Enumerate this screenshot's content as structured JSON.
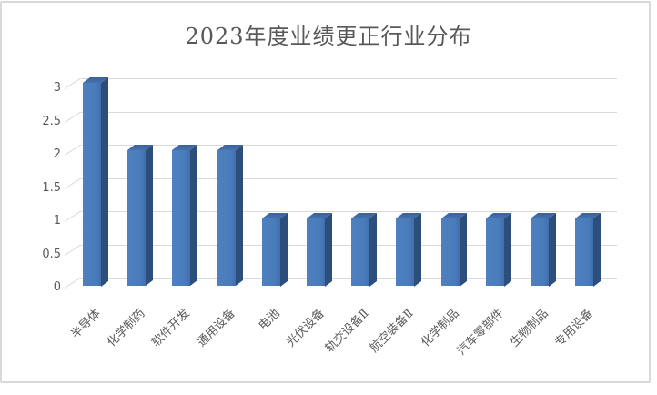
{
  "chart_data": {
    "type": "bar",
    "style": "3d-clustered-column",
    "title": "2023年度业绩更正行业分布",
    "categories": [
      "半导体",
      "化学制药",
      "软件开发",
      "通用设备",
      "电池",
      "光伏设备",
      "轨交设备Ⅱ",
      "航空装备Ⅱ",
      "化学制品",
      "汽车零部件",
      "生物制品",
      "专用设备"
    ],
    "values": [
      3,
      2,
      2,
      2,
      1,
      1,
      1,
      1,
      1,
      1,
      1,
      1
    ],
    "xlabel": "",
    "ylabel": "",
    "ylim": [
      0,
      3
    ],
    "ytick_step": 0.5,
    "ytick_labels": [
      "0",
      "0.5",
      "1",
      "1.5",
      "2",
      "2.5",
      "3"
    ],
    "grid": true,
    "legend": false,
    "x_label_rotation_deg": 45,
    "colors": {
      "bar_front": "#4a7cbb",
      "bar_side": "#2d4e7b",
      "bar_top": "#3a639c",
      "gridline": "#d9d9d9",
      "text": "#595959",
      "chart_border": "#d9d9d9",
      "background": "#ffffff"
    }
  }
}
